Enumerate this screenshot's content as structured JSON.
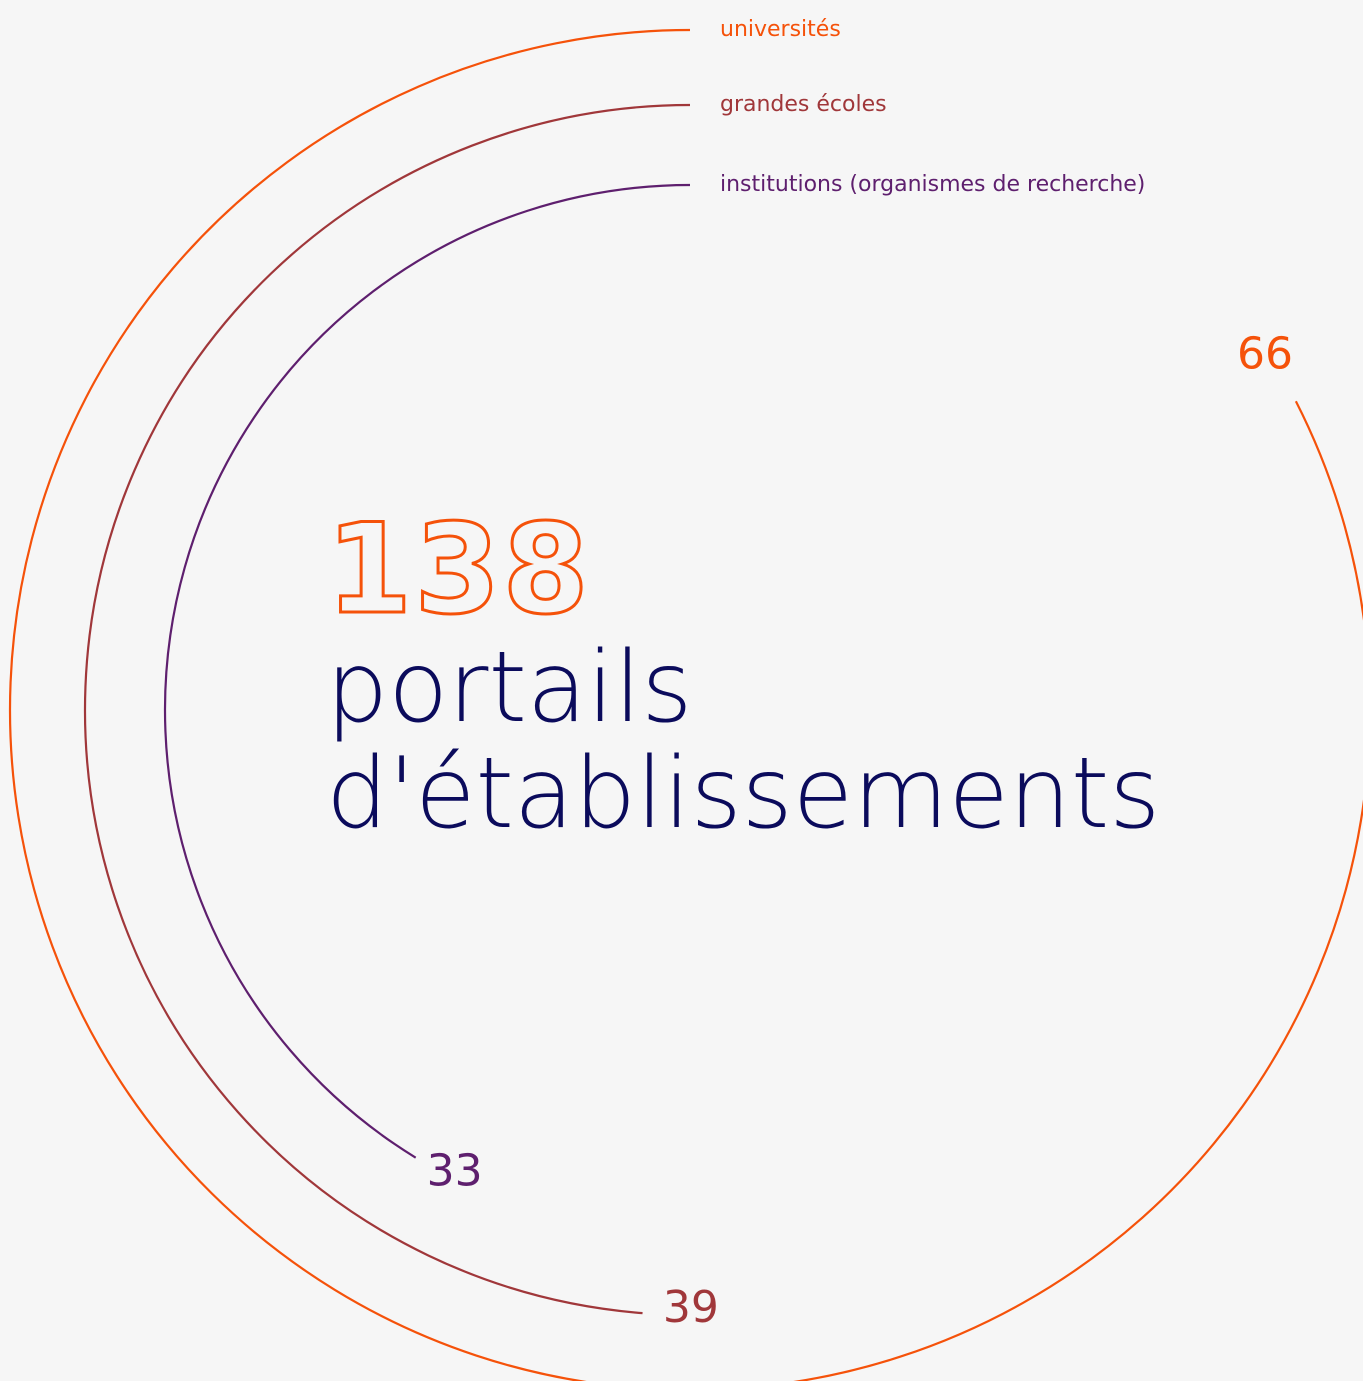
{
  "chart_data": {
    "type": "radial-bar",
    "total": 138,
    "title": "portails d'établissements",
    "categories": [
      "universités",
      "grandes écoles",
      "institutions (organismes de recherche)"
    ],
    "values": [
      66,
      39,
      33
    ],
    "colors": [
      "#f5520a",
      "#a0373a",
      "#5e1f6e"
    ],
    "rlim": [
      0,
      80
    ]
  }
}
